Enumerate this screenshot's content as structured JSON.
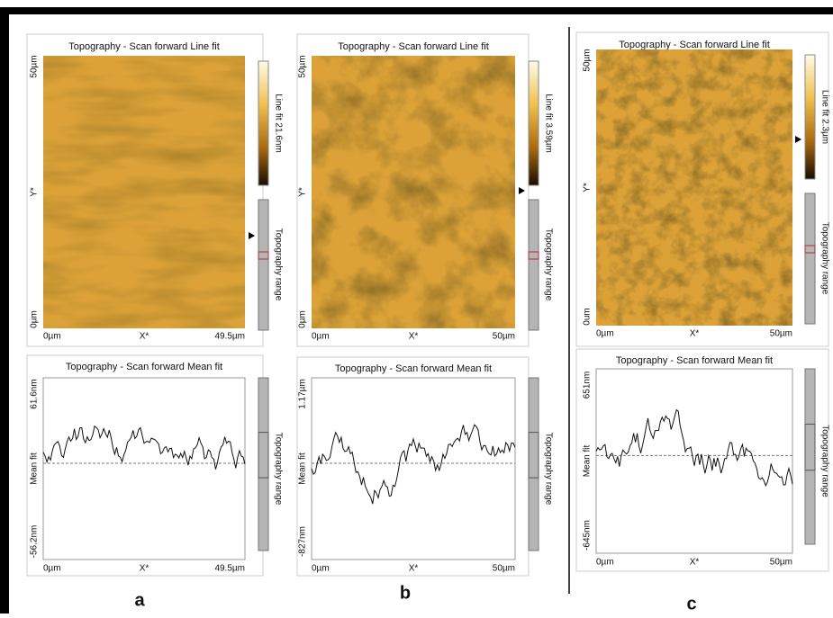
{
  "panels": [
    {
      "image": {
        "title": "Topography - Scan forward   Line fit",
        "y_top": "50µm",
        "y_label": "Y*",
        "y_bottom": "0µm",
        "x_left": "0µm",
        "x_label": "X*",
        "x_right": "49.5µm",
        "colorbar_label": "Line fit 21.6nm",
        "range_label": "Topography range"
      },
      "profile": {
        "title": "Topography - Scan forward   Mean fit",
        "y_top": "61.6nm",
        "y_label": "Mean fit",
        "y_bottom": "-56.2nm",
        "x_left": "0µm",
        "x_label": "X*",
        "x_right": "49.5µm",
        "range_label": "Topography range"
      },
      "label": "a"
    },
    {
      "image": {
        "title": "Topography - Scan forward   Line fit",
        "y_top": "50µm",
        "y_label": "Y*",
        "y_bottom": "0µm",
        "x_left": "0µm",
        "x_label": "X*",
        "x_right": "50µm",
        "colorbar_label": "Line fit 3.59µm",
        "range_label": "Topography range"
      },
      "profile": {
        "title": "Topography - Scan forward   Mean fit",
        "y_top": "1.17µm",
        "y_label": "Mean fit",
        "y_bottom": "-827nm",
        "x_left": "0µm",
        "x_label": "X*",
        "x_right": "50µm",
        "range_label": "Topography range"
      },
      "label": "b"
    },
    {
      "image": {
        "title": "Topography - Scan forward   Line fit",
        "y_top": "50µm",
        "y_label": "Y*",
        "y_bottom": "0um",
        "x_left": "0µm",
        "x_label": "X*",
        "x_right": "50µm",
        "colorbar_label": "Line fit 2.3µm",
        "range_label": "Topography range"
      },
      "profile": {
        "title": "Topography - Scan forward   Mean fit",
        "y_top": "651nm",
        "y_label": "Mean fit",
        "y_bottom": "-645nm",
        "x_left": "0µm",
        "x_label": "X*",
        "x_right": "50µm",
        "range_label": "Topography range"
      },
      "label": "c"
    }
  ]
}
